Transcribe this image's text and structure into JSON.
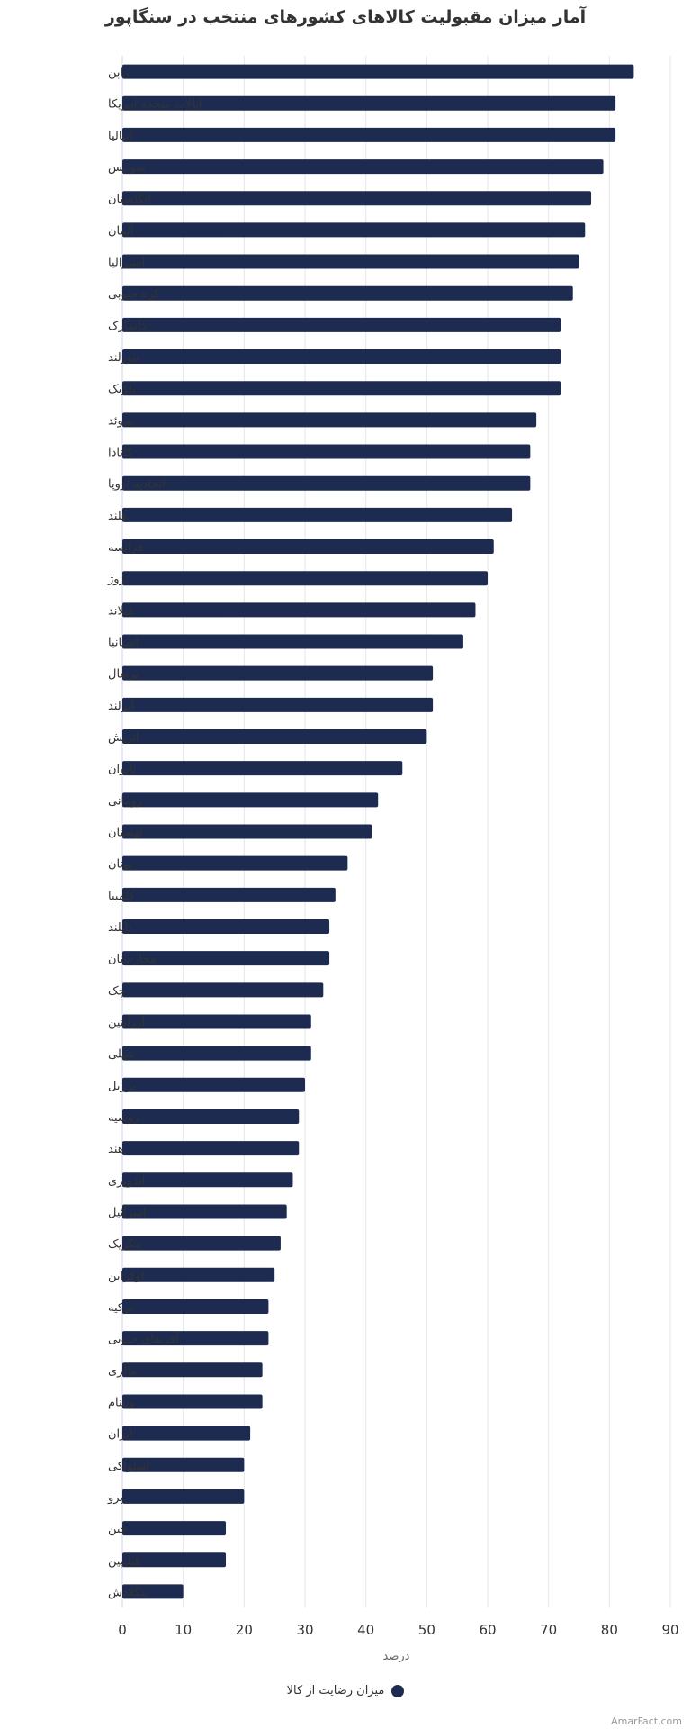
{
  "title": "آمار میزان مقبولیت کالاهای کشورهای منتخب در سنگاپور",
  "credit": "AmarFact.com",
  "colors": {
    "bar": "#1d2b50",
    "grid": "#e6e6e6",
    "axis": "#ccd6eb"
  },
  "chart_data": {
    "type": "bar",
    "orientation": "horizontal",
    "title": "آمار میزان مقبولیت کالاهای کشورهای منتخب در سنگاپور",
    "xlabel": "درصد",
    "ylabel": "",
    "xlim": [
      0,
      90
    ],
    "xticks": [
      0,
      10,
      20,
      30,
      40,
      50,
      60,
      70,
      80,
      90
    ],
    "grid": true,
    "legend_position": "bottom-center",
    "categories": [
      "ژاپن",
      "ایالات متحده آمریکا",
      "ایتالیا",
      "سوئیس",
      "انگلستان",
      "آلمان",
      "استرالیا",
      "کره جنوبی",
      "دانمارک",
      "نیوزلند",
      "بلژیک",
      "سوئد",
      "کانادا",
      "اتحادیه اروپا",
      "هلند",
      "فرانسه",
      "نروژ",
      "فنلاند",
      "اسپانیا",
      "پرتغال",
      "ایرلند",
      "اتریش",
      "تایوان",
      "رومانی",
      "لهستان",
      "یونان",
      "کلمبیا",
      "تایلند",
      "مجارستان",
      "چک",
      "آرژانتین",
      "شیلی",
      "برزیل",
      "روسیه",
      "هند",
      "اندونزی",
      "اسرائیل",
      "مکزیک",
      "اوکراین",
      "ترکیه",
      "آفریقای جنوبی",
      "مالزی",
      "ویتنام",
      "ایران",
      "اسلواکی",
      "پرو",
      "چین",
      "فیلیپین",
      "بنگلادش"
    ],
    "series": [
      {
        "name": "میزان رضایت از کالا",
        "values": [
          84,
          81,
          81,
          79,
          77,
          76,
          75,
          74,
          72,
          72,
          72,
          68,
          67,
          67,
          64,
          61,
          60,
          58,
          56,
          51,
          51,
          50,
          46,
          42,
          41,
          37,
          35,
          34,
          34,
          33,
          31,
          31,
          30,
          29,
          29,
          28,
          27,
          26,
          25,
          24,
          24,
          23,
          23,
          21,
          20,
          20,
          17,
          17,
          10
        ]
      }
    ]
  }
}
